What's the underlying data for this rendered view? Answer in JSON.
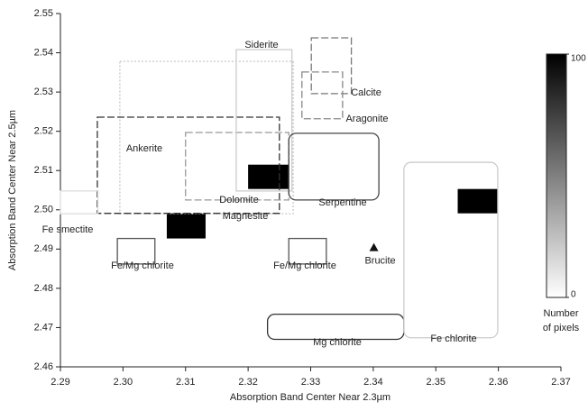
{
  "chart_data": {
    "type": "scatter",
    "xlabel": "Absorption Band Center Near 2.3µm",
    "ylabel": "Absorption Band Center Near 2.5µm",
    "xlim": [
      2.29,
      2.37
    ],
    "ylim": [
      2.46,
      2.55
    ],
    "xticks": [
      2.29,
      {
        "value": 2.3,
        "label": "2.30"
      },
      2.31,
      2.32,
      2.33,
      2.34,
      2.35,
      2.36,
      2.37
    ],
    "yticks": [
      2.46,
      2.47,
      2.48,
      2.49,
      {
        "value": 2.5,
        "label": "2.50"
      },
      2.51,
      2.52,
      2.53,
      2.54,
      2.55
    ],
    "regions": [
      {
        "name": "Magnesite",
        "x": [
          2.2995,
          2.3272
        ],
        "y": [
          2.499,
          2.5378
        ],
        "style": "dotted",
        "color": "#c8c8c8",
        "rounded": false
      },
      {
        "name": "Ankerite",
        "x": [
          2.2959,
          2.325
        ],
        "y": [
          2.4991,
          2.5236
        ],
        "style": "dashed",
        "color": "#333333",
        "rounded": false
      },
      {
        "name": "Dolomite",
        "x": [
          2.31,
          2.3265
        ],
        "y": [
          2.5025,
          2.5197
        ],
        "style": "dashed",
        "color": "#999999",
        "rounded": false
      },
      {
        "name": "Siderite",
        "x": [
          2.3181,
          2.327
        ],
        "y": [
          2.5048,
          2.5408
        ],
        "style": "solid",
        "color": "#cccccc",
        "rounded": false
      },
      {
        "name": "Calcite",
        "x": [
          2.3301,
          2.3365
        ],
        "y": [
          2.5296,
          2.5438
        ],
        "style": "dashed",
        "color": "#777777",
        "rounded": false
      },
      {
        "name": "Aragonite",
        "x": [
          2.3286,
          2.3351
        ],
        "y": [
          2.5232,
          2.5351
        ],
        "style": "dashed",
        "color": "#888888",
        "rounded": false
      },
      {
        "name": "Serpentine",
        "x": [
          2.3265,
          2.3409
        ],
        "y": [
          2.5025,
          2.5195
        ],
        "style": "solid",
        "color": "#444444",
        "rounded": true
      },
      {
        "name": "Fe smectite",
        "x": [
          2.29,
          2.296
        ],
        "y": [
          2.499,
          2.5048
        ],
        "style": "solid",
        "color": "#dddddd",
        "rounded": false
      },
      {
        "name": "Fe/Mg chlorite",
        "x": [
          2.2991,
          2.3051
        ],
        "y": [
          2.4862,
          2.4927
        ],
        "style": "solid",
        "color": "#555555",
        "rounded": false
      },
      {
        "name": "Fe/Mg chlorite",
        "x": [
          2.3265,
          2.3325
        ],
        "y": [
          2.4862,
          2.4927
        ],
        "style": "solid",
        "color": "#555555",
        "rounded": false
      },
      {
        "name": "Mg chlorite",
        "x": [
          2.3231,
          2.3449
        ],
        "y": [
          2.467,
          2.4734
        ],
        "style": "solid",
        "color": "#333333",
        "rounded": true
      },
      {
        "name": "Fe chlorite",
        "x": [
          2.3449,
          2.3599
        ],
        "y": [
          2.4674,
          2.5121
        ],
        "style": "solid",
        "color": "#cccccc",
        "rounded": true
      }
    ],
    "pixels": [
      {
        "x": [
          2.32,
          2.3265
        ],
        "y": [
          2.5053,
          2.5115
        ],
        "count": 100
      },
      {
        "x": [
          2.307,
          2.3132
        ],
        "y": [
          2.4927,
          2.4991
        ],
        "count": 100
      },
      {
        "x": [
          2.3535,
          2.3599
        ],
        "y": [
          2.4991,
          2.5053
        ],
        "count": 100
      }
    ],
    "points": [
      {
        "name": "Brucite",
        "x": 2.3401,
        "y": 2.4904,
        "color": "#111111",
        "marker": "triangle"
      }
    ],
    "colorbar": {
      "label": [
        "Number",
        "of pixels"
      ],
      "lim": [
        0,
        100
      ],
      "ticks": [
        0,
        100
      ],
      "colors": [
        "#ffffff",
        "#000000"
      ]
    }
  }
}
